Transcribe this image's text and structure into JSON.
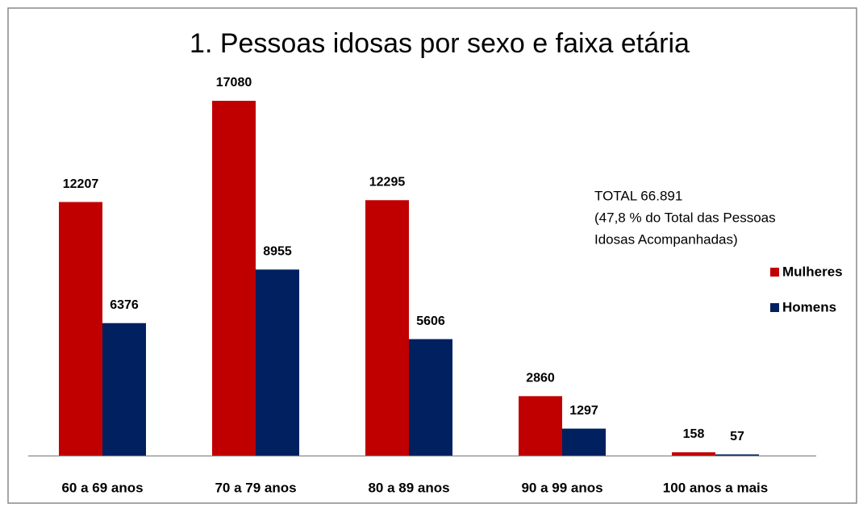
{
  "chart_data": {
    "type": "bar",
    "title": "1. Pessoas idosas por sexo e faixa etária",
    "categories": [
      "60 a 69 anos",
      "70 a 79 anos",
      "80 a 89 anos",
      "90 a 99 anos",
      "100 anos a mais"
    ],
    "series": [
      {
        "name": "Mulheres",
        "color": "#c00000",
        "values": [
          12207,
          17080,
          12295,
          2860,
          158
        ]
      },
      {
        "name": "Homens",
        "color": "#002060",
        "values": [
          6376,
          8955,
          5606,
          1297,
          57
        ]
      }
    ],
    "annotation": [
      "TOTAL  66.891",
      "(47,8 % do Total  das Pessoas",
      "Idosas Acompanhadas)"
    ],
    "legend": "right"
  }
}
